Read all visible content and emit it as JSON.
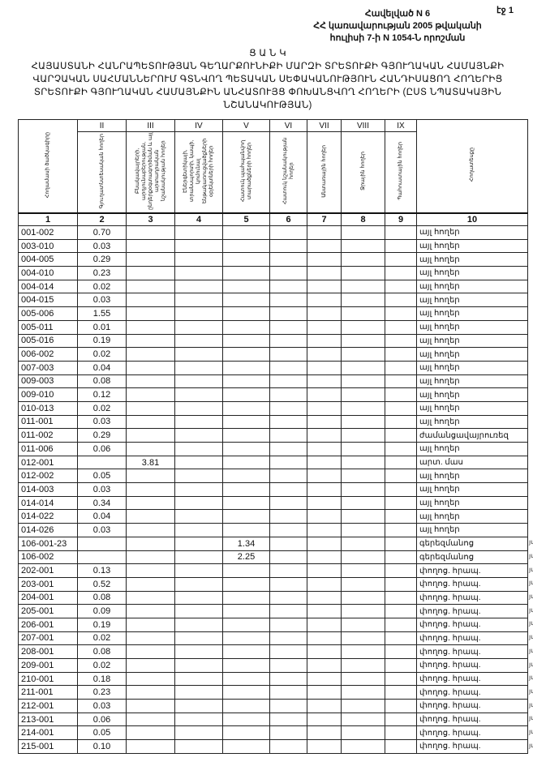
{
  "header": {
    "page_label": "էջ 1",
    "annex_lines": [
      "Հավելված N 6",
      "ՀՀ կառավարության 2005 թվականի",
      "հուլիսի 7-ի N 1054-Ն որոշման"
    ],
    "title_lines": [
      "Ց Ա Ն Կ",
      "ՀԱՅԱՍՏԱՆԻ ՀԱՆՐԱՊԵՏՈՒԹՅԱՆ ԳԵՂԱՐՔՈՒՆԻՔԻ ՄԱՐԶԻ ՏՐԵՏՈՒՔԻ ԳՅՈՒՂԱԿԱՆ ՀԱՄԱՅՆՔԻ",
      "ՎԱՐՉԱԿԱՆ ՍԱՀՄԱՆՆԵՐՈՒՄ ԳՏՆՎՈՂ ՊԵՏԱԿԱՆ ՍԵՓԱԿԱՆՈՒԹՅՈՒՆ ՀԱՆԴԻՍԱՑՈՂ ՀՈՂԵՐԻՑ",
      "ՏՐԵՏՈՒՔԻ ԳՅՈՒՂԱԿԱՆ ՀԱՄԱՅՆՔԻՆ ԱՆՀԱՏՈՒՅՑ ՓՈԽԱՆՑՎՈՂ ՀՈՂԵՐԻ (ԸՍՏ ՆՊԱՏԱԿԱՅԻՆ",
      "ՆՇԱՆԱԿՈՒԹՅԱՆ)"
    ]
  },
  "table": {
    "roman": [
      "",
      "II",
      "III",
      "IV",
      "V",
      "VI",
      "VII",
      "VIII",
      "IX",
      ""
    ],
    "column_headers": [
      "Հողամասի ծածկագիրը",
      "Գյուղատնտեսական հողեր",
      "Բնակավայրերի, արդյունաբերության, ընդերքօգտագործման և այլ արտադրական նշանակության հողեր",
      "Էներգետիկայի, տրանսպորտի, կապի, կոմունալ ենթակառուցվածքների օբյեկտների հողեր",
      "Հատուկ պահպանվող տարածքների հողեր",
      "Հատուկ նշանակության հողեր",
      "Անտառային հողեր",
      "Ջրային հողեր",
      "Պահուստային հողեր",
      "Հողատեսքը"
    ],
    "numbers": [
      "1",
      "2",
      "3",
      "4",
      "5",
      "6",
      "7",
      "8",
      "9",
      "10"
    ],
    "rows": [
      {
        "code": "001-002",
        "c2": "0.70",
        "c3": "",
        "c5": "",
        "type": "այլ հողեր",
        "mark": ""
      },
      {
        "code": "003-010",
        "c2": "0.03",
        "c3": "",
        "c5": "",
        "type": "այլ հողեր",
        "mark": ""
      },
      {
        "code": "004-005",
        "c2": "0.29",
        "c3": "",
        "c5": "",
        "type": "այլ հողեր",
        "mark": ""
      },
      {
        "code": "004-010",
        "c2": "0.23",
        "c3": "",
        "c5": "",
        "type": "այլ հողեր",
        "mark": ""
      },
      {
        "code": "004-014",
        "c2": "0.02",
        "c3": "",
        "c5": "",
        "type": "այլ հողեր",
        "mark": ""
      },
      {
        "code": "004-015",
        "c2": "0.03",
        "c3": "",
        "c5": "",
        "type": "այլ հողեր",
        "mark": ""
      },
      {
        "code": "005-006",
        "c2": "1.55",
        "c3": "",
        "c5": "",
        "type": "այլ հողեր",
        "mark": ""
      },
      {
        "code": "005-011",
        "c2": "0.01",
        "c3": "",
        "c5": "",
        "type": "այլ հողեր",
        "mark": ""
      },
      {
        "code": "005-016",
        "c2": "0.19",
        "c3": "",
        "c5": "",
        "type": "այլ հողեր",
        "mark": ""
      },
      {
        "code": "006-002",
        "c2": "0.02",
        "c3": "",
        "c5": "",
        "type": "այլ հողեր",
        "mark": ""
      },
      {
        "code": "007-003",
        "c2": "0.04",
        "c3": "",
        "c5": "",
        "type": "այլ հողեր",
        "mark": ""
      },
      {
        "code": "009-003",
        "c2": "0.08",
        "c3": "",
        "c5": "",
        "type": "այլ հողեր",
        "mark": ""
      },
      {
        "code": "009-010",
        "c2": "0.12",
        "c3": "",
        "c5": "",
        "type": "այլ հողեր",
        "mark": ""
      },
      {
        "code": "010-013",
        "c2": "0.02",
        "c3": "",
        "c5": "",
        "type": "այլ հողեր",
        "mark": ""
      },
      {
        "code": "011-001",
        "c2": "0.03",
        "c3": "",
        "c5": "",
        "type": "այլ հողեր",
        "mark": ""
      },
      {
        "code": "011-002",
        "c2": "0.29",
        "c3": "",
        "c5": "",
        "type": "ժամանցավայրուռեզ",
        "mark": ""
      },
      {
        "code": "011-006",
        "c2": "0.06",
        "c3": "",
        "c5": "",
        "type": "այլ հողեր",
        "mark": ""
      },
      {
        "code": "012-001",
        "c2": "",
        "c3": "3.81",
        "c5": "",
        "type": "արտ. մաս",
        "mark": ""
      },
      {
        "code": "012-002",
        "c2": "0.05",
        "c3": "",
        "c5": "",
        "type": "այլ հողեր",
        "mark": ""
      },
      {
        "code": "014-003",
        "c2": "0.03",
        "c3": "",
        "c5": "",
        "type": "այլ հողեր",
        "mark": ""
      },
      {
        "code": "014-014",
        "c2": "0.34",
        "c3": "",
        "c5": "",
        "type": "այլ հողեր",
        "mark": ""
      },
      {
        "code": "014-022",
        "c2": "0.04",
        "c3": "",
        "c5": "",
        "type": "այլ հողեր",
        "mark": ""
      },
      {
        "code": "014-026",
        "c2": "0.03",
        "c3": "",
        "c5": "",
        "type": "այլ հողեր",
        "mark": ""
      },
      {
        "code": "106-001-23",
        "c2": "",
        "c3": "",
        "c5": "1.34",
        "type": "գերեզմանոց",
        "mark": "յմ"
      },
      {
        "code": "106-002",
        "c2": "",
        "c3": "",
        "c5": "2.25",
        "type": "գերեզմանոց",
        "mark": "յմ"
      },
      {
        "code": "202-001",
        "c2": "0.13",
        "c3": "",
        "c5": "",
        "type": "փողոց. հրապ.",
        "mark": "յմ"
      },
      {
        "code": "203-001",
        "c2": "0.52",
        "c3": "",
        "c5": "",
        "type": "փողոց. հրապ.",
        "mark": "յմ"
      },
      {
        "code": "204-001",
        "c2": "0.08",
        "c3": "",
        "c5": "",
        "type": "փողոց. հրապ.",
        "mark": "յմ"
      },
      {
        "code": "205-001",
        "c2": "0.09",
        "c3": "",
        "c5": "",
        "type": "փողոց. հրապ.",
        "mark": "յմ"
      },
      {
        "code": "206-001",
        "c2": "0.19",
        "c3": "",
        "c5": "",
        "type": "փողոց. հրապ.",
        "mark": "յմ"
      },
      {
        "code": "207-001",
        "c2": "0.02",
        "c3": "",
        "c5": "",
        "type": "փողոց. հրապ.",
        "mark": "յմ"
      },
      {
        "code": "208-001",
        "c2": "0.08",
        "c3": "",
        "c5": "",
        "type": "փողոց. հրապ.",
        "mark": "յմ"
      },
      {
        "code": "209-001",
        "c2": "0.02",
        "c3": "",
        "c5": "",
        "type": "փողոց. հրապ.",
        "mark": "յմ"
      },
      {
        "code": "210-001",
        "c2": "0.18",
        "c3": "",
        "c5": "",
        "type": "փողոց. հրապ.",
        "mark": "յմ"
      },
      {
        "code": "211-001",
        "c2": "0.23",
        "c3": "",
        "c5": "",
        "type": "փողոց. հրապ.",
        "mark": "յմ"
      },
      {
        "code": "212-001",
        "c2": "0.03",
        "c3": "",
        "c5": "",
        "type": "փողոց. հրապ.",
        "mark": "յմ"
      },
      {
        "code": "213-001",
        "c2": "0.06",
        "c3": "",
        "c5": "",
        "type": "փողոց. հրապ.",
        "mark": "յմ"
      },
      {
        "code": "214-001",
        "c2": "0.05",
        "c3": "",
        "c5": "",
        "type": "փողոց. հրապ.",
        "mark": "յմ"
      },
      {
        "code": "215-001",
        "c2": "0.10",
        "c3": "",
        "c5": "",
        "type": "փողոց. հրապ.",
        "mark": "յմ"
      }
    ]
  }
}
